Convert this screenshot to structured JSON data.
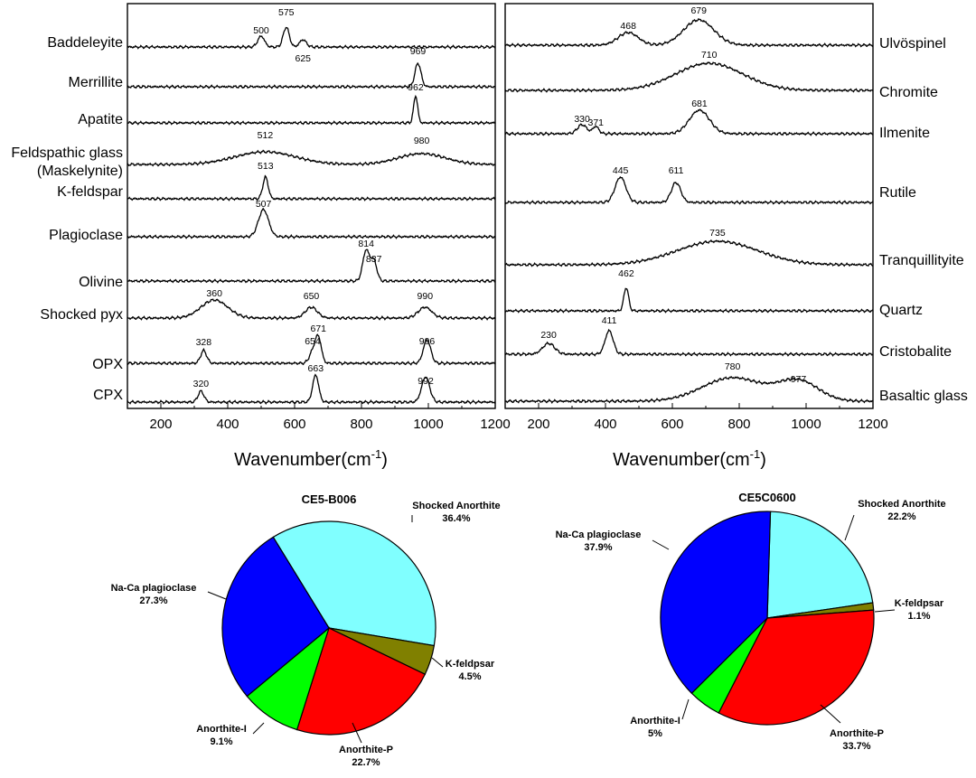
{
  "chart_data": [
    {
      "type": "line",
      "panel": "left",
      "xlabel": "Wavenumber(cm-1)",
      "xlim": [
        100,
        1200
      ],
      "xticks": [
        200,
        400,
        600,
        800,
        1000,
        1200
      ],
      "y_axis": "stacked spectra, no scale",
      "series": [
        {
          "name": "Baddeleyite",
          "peaks": [
            500,
            575,
            625
          ]
        },
        {
          "name": "Merrillite",
          "peaks": [
            969
          ]
        },
        {
          "name": "Apatite",
          "peaks": [
            962
          ]
        },
        {
          "name": "Feldspathic glass (Maskelynite)",
          "peaks": [
            512,
            980
          ]
        },
        {
          "name": "K-feldspar",
          "peaks": [
            513
          ]
        },
        {
          "name": "Plagioclase",
          "peaks": [
            507
          ]
        },
        {
          "name": "Olivine",
          "peaks": [
            814,
            837
          ]
        },
        {
          "name": "Shocked pyx",
          "peaks": [
            360,
            650,
            990
          ]
        },
        {
          "name": "OPX",
          "peaks": [
            328,
            654,
            671,
            996
          ]
        },
        {
          "name": "CPX",
          "peaks": [
            320,
            663,
            992
          ]
        }
      ]
    },
    {
      "type": "line",
      "panel": "right",
      "xlabel": "Wavenumber(cm-1)",
      "xlim": [
        100,
        1200
      ],
      "xticks": [
        200,
        400,
        600,
        800,
        1000,
        1200
      ],
      "y_axis": "stacked spectra, no scale",
      "series": [
        {
          "name": "Ulvöspinel",
          "peaks": [
            468,
            679
          ]
        },
        {
          "name": "Chromite",
          "peaks": [
            710
          ]
        },
        {
          "name": "Ilmenite",
          "peaks": [
            330,
            371,
            681
          ]
        },
        {
          "name": "Rutile",
          "peaks": [
            445,
            611
          ]
        },
        {
          "name": "Tranquillityite",
          "peaks": [
            735
          ]
        },
        {
          "name": "Quartz",
          "peaks": [
            462
          ]
        },
        {
          "name": "Cristobalite",
          "peaks": [
            230,
            411
          ]
        },
        {
          "name": "Basaltic glass",
          "peaks": [
            780,
            977
          ]
        }
      ]
    },
    {
      "type": "pie",
      "title": "CE5-B006",
      "slices": [
        {
          "label": "Shocked Anorthite",
          "value": 36.4,
          "text": "36.4%",
          "color": "#80ffff"
        },
        {
          "label": "K-feldpsar",
          "value": 4.5,
          "text": "4.5%",
          "color": "#808000"
        },
        {
          "label": "Anorthite-P",
          "value": 22.7,
          "text": "22.7%",
          "color": "#ff0000"
        },
        {
          "label": "Anorthite-I",
          "value": 9.1,
          "text": "9.1%",
          "color": "#00ff00"
        },
        {
          "label": "Na-Ca plagioclase",
          "value": 27.3,
          "text": "27.3%",
          "color": "#0000ff"
        }
      ]
    },
    {
      "type": "pie",
      "title": "CE5C0600",
      "slices": [
        {
          "label": "Shocked Anorthite",
          "value": 22.2,
          "text": "22.2%",
          "color": "#80ffff"
        },
        {
          "label": "K-feldpsar",
          "value": 1.1,
          "text": "1.1%",
          "color": "#808000"
        },
        {
          "label": "Anorthite-P",
          "value": 33.7,
          "text": "33.7%",
          "color": "#ff0000"
        },
        {
          "label": "Anorthite-I",
          "value": 5,
          "text": "5%",
          "color": "#00ff00"
        },
        {
          "label": "Na-Ca plagioclase",
          "value": 37.9,
          "text": "37.9%",
          "color": "#0000ff"
        }
      ]
    }
  ]
}
